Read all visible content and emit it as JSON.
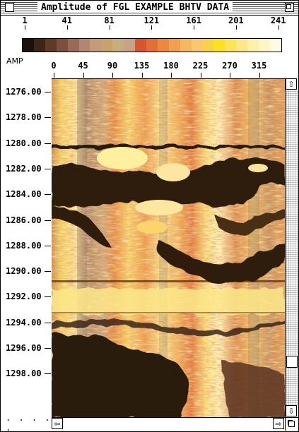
{
  "window": {
    "title": "Amplitude of FGL EXAMPLE BHTV DATA"
  },
  "colour_scale": {
    "ticks": [
      "1",
      "41",
      "81",
      "121",
      "161",
      "201",
      "241"
    ],
    "label": "AMP",
    "colors": [
      "#1a1108",
      "#3d2517",
      "#5e3a27",
      "#7c5040",
      "#9a6a55",
      "#b38670",
      "#c49a7a",
      "#c7a26a",
      "#c8ad7d",
      "#c9a088",
      "#d8552b",
      "#e07038",
      "#ea8a40",
      "#f0a050",
      "#f5b860",
      "#f8c870",
      "#fad24a",
      "#fde020",
      "#fbe455",
      "#fde888",
      "#fff0a8",
      "#fff6c8",
      "#fffbe0"
    ]
  },
  "azimuth_axis": {
    "labels": [
      "0",
      "45",
      "90",
      "135",
      "180",
      "225",
      "270",
      "315"
    ]
  },
  "depth_axis": {
    "labels": [
      "1276.00",
      "1278.00",
      "1280.00",
      "1282.00",
      "1284.00",
      "1286.00",
      "1288.00",
      "1290.00",
      "1292.00",
      "1294.00",
      "1296.00",
      "1298.00"
    ],
    "more": ". . . . ."
  },
  "scroll": {
    "up": "⇧",
    "down": "⇩",
    "left": "⇦",
    "right": "⇨"
  }
}
